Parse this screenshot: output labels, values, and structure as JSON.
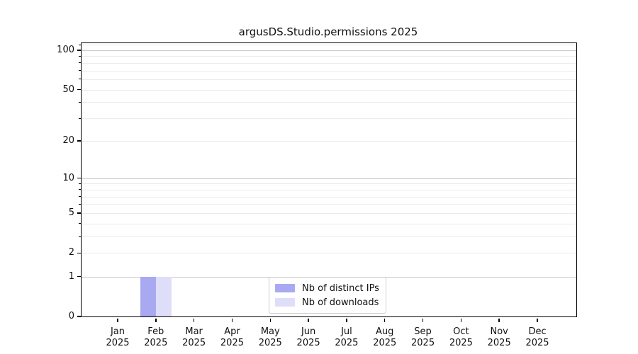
{
  "chart_data": {
    "type": "bar",
    "title": "argusDS.Studio.permissions 2025",
    "categories": [
      "Jan",
      "Feb",
      "Mar",
      "Apr",
      "May",
      "Jun",
      "Jul",
      "Aug",
      "Sep",
      "Oct",
      "Nov",
      "Dec"
    ],
    "category_year": "2025",
    "series": [
      {
        "name": "Nb of distinct IPs",
        "color": "#a9a9f2",
        "values": [
          0,
          1,
          0,
          0,
          0,
          0,
          0,
          0,
          0,
          0,
          0,
          0
        ]
      },
      {
        "name": "Nb of downloads",
        "color": "#dedef8",
        "values": [
          0,
          1,
          0,
          0,
          0,
          0,
          0,
          0,
          0,
          0,
          0,
          0
        ]
      }
    ],
    "yscale": "log1p",
    "ylim": [
      0,
      113
    ],
    "yticks": [
      0,
      1,
      2,
      5,
      10,
      20,
      50,
      100
    ],
    "yticks_major_grid": [
      1,
      10,
      100
    ],
    "yticks_minor": [
      3,
      4,
      6,
      7,
      8,
      9,
      30,
      40,
      60,
      70,
      80,
      90,
      110
    ],
    "xlabel": "",
    "ylabel": "",
    "grid": "both",
    "legend_position": "lower center"
  }
}
